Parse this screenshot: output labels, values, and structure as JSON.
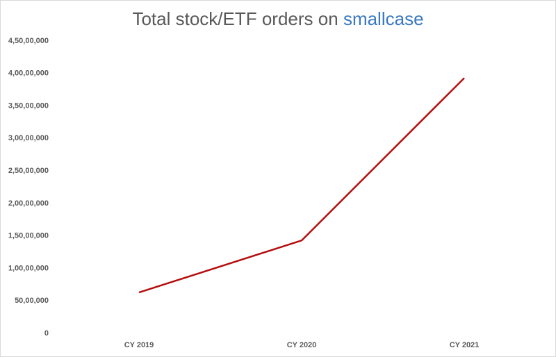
{
  "chart_data": {
    "type": "line",
    "title": "Total stock/ETF orders on",
    "title_highlight": "smallcase",
    "categories": [
      "CY 2019",
      "CY 2020",
      "CY 2021"
    ],
    "series": [
      {
        "color": "#b50d0d",
        "values": [
          6300000,
          14300000,
          39300000
        ]
      }
    ],
    "ylim": [
      0,
      45000000
    ],
    "yticks": [
      0,
      {
        "value": 5000000,
        "label": "50,00,000"
      },
      {
        "value": 10000000,
        "label": "1,00,00,000"
      },
      {
        "value": 15000000,
        "label": "1,50,00,000"
      },
      {
        "value": 20000000,
        "label": "2,00,00,000"
      },
      {
        "value": 25000000,
        "label": "2,50,00,000"
      },
      {
        "value": 30000000,
        "label": "3,00,00,000"
      },
      {
        "value": 35000000,
        "label": "3,50,00,000"
      },
      {
        "value": 40000000,
        "label": "4,00,00,000"
      },
      {
        "value": 45000000,
        "label": "4,50,00,000"
      }
    ],
    "grid": false
  }
}
